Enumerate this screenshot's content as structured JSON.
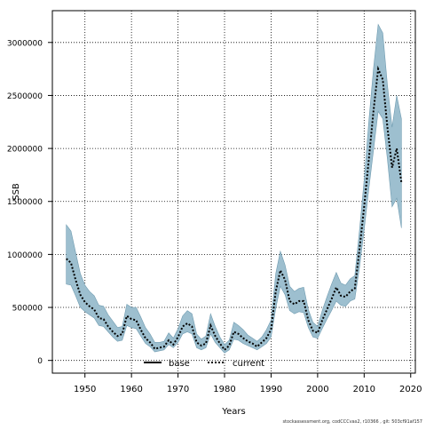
{
  "chart_data": {
    "type": "line",
    "xlabel": "Years",
    "ylabel": "SSB",
    "xlim": [
      1943,
      2021
    ],
    "ylim": [
      -120000,
      3300000
    ],
    "x_ticks": [
      1950,
      1960,
      1970,
      1980,
      1990,
      2000,
      2010,
      2020
    ],
    "y_ticks": [
      0,
      500000,
      1000000,
      1500000,
      2000000,
      2500000,
      3000000
    ],
    "x_tick_labels": [
      "1950",
      "1960",
      "1970",
      "1980",
      "1990",
      "2000",
      "2010",
      "2020"
    ],
    "y_tick_labels": [
      "0",
      "500000",
      "1000000",
      "1500000",
      "2000000",
      "2500000",
      "3000000"
    ],
    "grid": true,
    "legend_position": "bottom-center",
    "band_color": "#9dbfcf",
    "band_edge_color": "#6f9bb0",
    "series": [
      {
        "name": "base",
        "style": "solid",
        "color": "#000000",
        "values": []
      },
      {
        "name": "current",
        "style": "dotted",
        "color": "#000000",
        "x": [
          1946,
          1947,
          1948,
          1949,
          1950,
          1951,
          1952,
          1953,
          1954,
          1955,
          1956,
          1957,
          1958,
          1959,
          1960,
          1961,
          1962,
          1963,
          1964,
          1965,
          1966,
          1967,
          1968,
          1969,
          1970,
          1971,
          1972,
          1973,
          1974,
          1975,
          1976,
          1977,
          1978,
          1979,
          1980,
          1981,
          1982,
          1983,
          1984,
          1985,
          1986,
          1987,
          1988,
          1989,
          1990,
          1991,
          1992,
          1993,
          1994,
          1995,
          1996,
          1997,
          1998,
          1999,
          2000,
          2001,
          2002,
          2003,
          2004,
          2005,
          2006,
          2007,
          2008,
          2009,
          2010,
          2011,
          2012,
          2013,
          2014,
          2015,
          2016,
          2017,
          2018
        ],
        "values": [
          960000,
          920000,
          760000,
          620000,
          550000,
          510000,
          480000,
          400000,
          390000,
          320000,
          270000,
          230000,
          250000,
          420000,
          390000,
          380000,
          290000,
          210000,
          170000,
          110000,
          120000,
          130000,
          190000,
          150000,
          220000,
          320000,
          350000,
          320000,
          170000,
          140000,
          160000,
          330000,
          230000,
          160000,
          100000,
          140000,
          270000,
          250000,
          210000,
          180000,
          160000,
          130000,
          170000,
          210000,
          290000,
          650000,
          850000,
          760000,
          560000,
          530000,
          560000,
          560000,
          380000,
          280000,
          260000,
          380000,
          480000,
          580000,
          690000,
          610000,
          600000,
          650000,
          680000,
          1050000,
          1450000,
          1900000,
          2350000,
          2750000,
          2650000,
          2200000,
          1820000,
          2000000,
          1680000
        ]
      }
    ],
    "band_upper": [
      1280000,
      1220000,
      1020000,
      820000,
      710000,
      650000,
      610000,
      520000,
      510000,
      430000,
      370000,
      310000,
      320000,
      530000,
      500000,
      500000,
      410000,
      310000,
      250000,
      170000,
      170000,
      180000,
      260000,
      210000,
      300000,
      420000,
      470000,
      440000,
      250000,
      200000,
      230000,
      440000,
      320000,
      220000,
      150000,
      190000,
      360000,
      330000,
      290000,
      240000,
      210000,
      180000,
      220000,
      290000,
      380000,
      820000,
      1030000,
      900000,
      700000,
      650000,
      680000,
      690000,
      480000,
      360000,
      320000,
      470000,
      600000,
      720000,
      830000,
      730000,
      710000,
      770000,
      800000,
      1230000,
      1700000,
      2260000,
      2750000,
      3170000,
      3090000,
      2600000,
      2200000,
      2500000,
      2280000
    ],
    "band_lower": [
      720000,
      710000,
      610000,
      500000,
      460000,
      430000,
      400000,
      330000,
      320000,
      270000,
      220000,
      180000,
      190000,
      330000,
      310000,
      300000,
      230000,
      160000,
      130000,
      80000,
      90000,
      100000,
      150000,
      120000,
      170000,
      250000,
      270000,
      250000,
      120000,
      100000,
      120000,
      250000,
      170000,
      120000,
      70000,
      100000,
      200000,
      190000,
      160000,
      140000,
      120000,
      100000,
      130000,
      160000,
      220000,
      490000,
      700000,
      620000,
      470000,
      440000,
      460000,
      450000,
      310000,
      220000,
      210000,
      300000,
      390000,
      470000,
      560000,
      520000,
      510000,
      560000,
      580000,
      880000,
      1230000,
      1620000,
      1980000,
      2350000,
      2280000,
      1900000,
      1450000,
      1530000,
      1250000
    ]
  },
  "footer_text": "stockassessment.org, codCCCvas2, r10366 , git: 503cf91af157"
}
